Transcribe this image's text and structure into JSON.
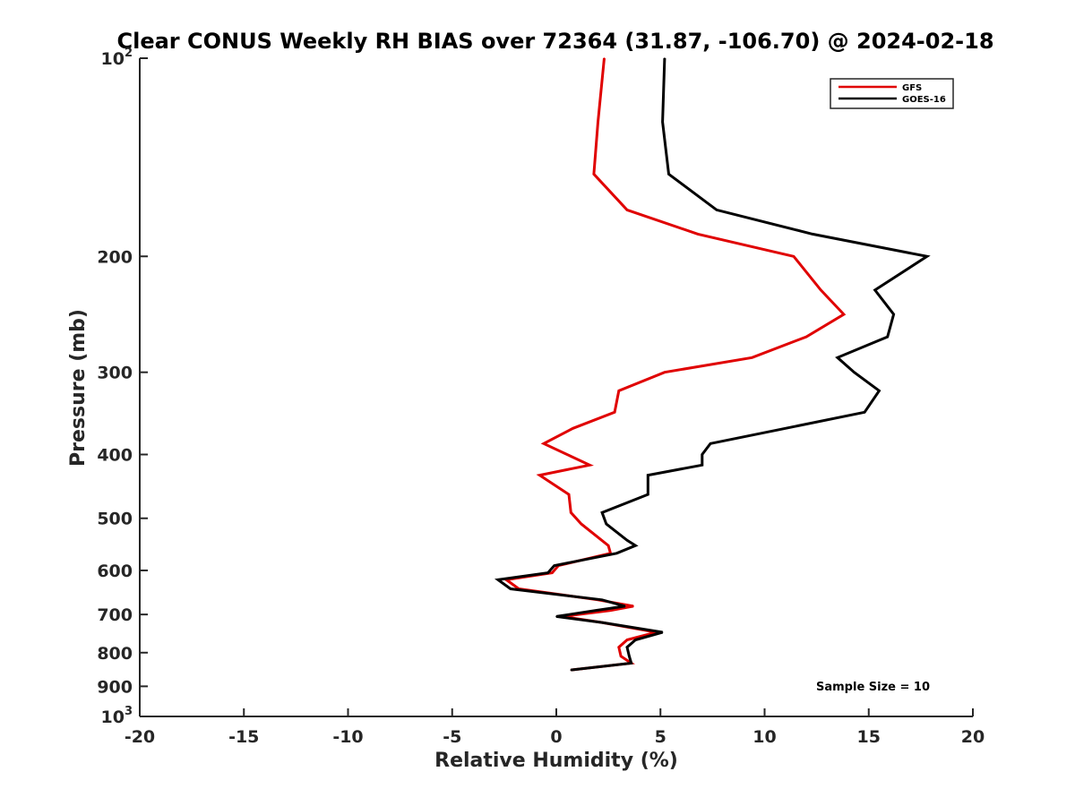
{
  "chart_data": {
    "type": "line",
    "title": "Clear CONUS Weekly RH BIAS over 72364 (31.87, -106.70) @ 2024-02-18",
    "xlabel": "Relative Humidity (%)",
    "ylabel": "Pressure (mb)",
    "xlim": [
      -20,
      20
    ],
    "ylim": [
      100,
      1000
    ],
    "y_scale": "log",
    "y_reversed": true,
    "grid": false,
    "legend_position": "top-right",
    "annotation": "Sample Size = 10",
    "x_ticks": [
      -20,
      -15,
      -10,
      -5,
      0,
      5,
      10,
      15,
      20
    ],
    "x_tick_labels": [
      "-20",
      "-15",
      "-10",
      "-5",
      "0",
      "5",
      "10",
      "15",
      "20"
    ],
    "y_ticks": [
      {
        "value": 100,
        "base": "10",
        "exp": "2"
      },
      {
        "value": 200,
        "label": "200"
      },
      {
        "value": 300,
        "label": "300"
      },
      {
        "value": 400,
        "label": "400"
      },
      {
        "value": 500,
        "label": "500"
      },
      {
        "value": 600,
        "label": "600"
      },
      {
        "value": 700,
        "label": "700"
      },
      {
        "value": 800,
        "label": "800"
      },
      {
        "value": 900,
        "label": "900"
      },
      {
        "value": 1000,
        "base": "10",
        "exp": "3"
      }
    ],
    "series": [
      {
        "name": "GFS",
        "color": "#e00000",
        "points": [
          {
            "x": 2.3,
            "y": 100
          },
          {
            "x": 2.0,
            "y": 125
          },
          {
            "x": 1.8,
            "y": 150
          },
          {
            "x": 3.4,
            "y": 170
          },
          {
            "x": 6.8,
            "y": 185
          },
          {
            "x": 11.4,
            "y": 200
          },
          {
            "x": 12.7,
            "y": 225
          },
          {
            "x": 13.8,
            "y": 245
          },
          {
            "x": 12.0,
            "y": 265
          },
          {
            "x": 9.4,
            "y": 285
          },
          {
            "x": 5.2,
            "y": 300
          },
          {
            "x": 3.0,
            "y": 320
          },
          {
            "x": 2.8,
            "y": 345
          },
          {
            "x": 0.8,
            "y": 365
          },
          {
            "x": -0.6,
            "y": 385
          },
          {
            "x": 1.6,
            "y": 415
          },
          {
            "x": -0.8,
            "y": 430
          },
          {
            "x": 0.6,
            "y": 460
          },
          {
            "x": 0.7,
            "y": 490
          },
          {
            "x": 1.2,
            "y": 510
          },
          {
            "x": 2.5,
            "y": 550
          },
          {
            "x": 2.6,
            "y": 565
          },
          {
            "x": 0.1,
            "y": 590
          },
          {
            "x": -0.2,
            "y": 605
          },
          {
            "x": -2.4,
            "y": 620
          },
          {
            "x": -1.8,
            "y": 640
          },
          {
            "x": 2.0,
            "y": 665
          },
          {
            "x": 3.7,
            "y": 680
          },
          {
            "x": 2.6,
            "y": 690
          },
          {
            "x": 0.3,
            "y": 705
          },
          {
            "x": 2.2,
            "y": 720
          },
          {
            "x": 4.8,
            "y": 745
          },
          {
            "x": 3.4,
            "y": 765
          },
          {
            "x": 3.0,
            "y": 785
          },
          {
            "x": 3.1,
            "y": 810
          },
          {
            "x": 3.6,
            "y": 830
          },
          {
            "x": 0.7,
            "y": 850
          }
        ]
      },
      {
        "name": "GOES-16",
        "color": "#000000",
        "points": [
          {
            "x": 5.2,
            "y": 100
          },
          {
            "x": 5.1,
            "y": 125
          },
          {
            "x": 5.4,
            "y": 150
          },
          {
            "x": 7.7,
            "y": 170
          },
          {
            "x": 12.3,
            "y": 185
          },
          {
            "x": 17.8,
            "y": 200
          },
          {
            "x": 15.3,
            "y": 225
          },
          {
            "x": 16.2,
            "y": 245
          },
          {
            "x": 15.9,
            "y": 265
          },
          {
            "x": 13.5,
            "y": 285
          },
          {
            "x": 14.3,
            "y": 300
          },
          {
            "x": 15.5,
            "y": 320
          },
          {
            "x": 14.8,
            "y": 345
          },
          {
            "x": 11.0,
            "y": 365
          },
          {
            "x": 7.4,
            "y": 385
          },
          {
            "x": 7.0,
            "y": 400
          },
          {
            "x": 7.0,
            "y": 415
          },
          {
            "x": 4.4,
            "y": 430
          },
          {
            "x": 4.4,
            "y": 460
          },
          {
            "x": 2.2,
            "y": 490
          },
          {
            "x": 2.4,
            "y": 510
          },
          {
            "x": 3.4,
            "y": 540
          },
          {
            "x": 3.8,
            "y": 550
          },
          {
            "x": 2.9,
            "y": 565
          },
          {
            "x": -0.1,
            "y": 590
          },
          {
            "x": -0.4,
            "y": 605
          },
          {
            "x": -2.8,
            "y": 620
          },
          {
            "x": -2.2,
            "y": 640
          },
          {
            "x": 2.2,
            "y": 665
          },
          {
            "x": 3.3,
            "y": 680
          },
          {
            "x": 1.9,
            "y": 690
          },
          {
            "x": 0.0,
            "y": 705
          },
          {
            "x": 2.2,
            "y": 720
          },
          {
            "x": 5.1,
            "y": 745
          },
          {
            "x": 3.8,
            "y": 765
          },
          {
            "x": 3.4,
            "y": 785
          },
          {
            "x": 3.5,
            "y": 810
          },
          {
            "x": 3.6,
            "y": 830
          },
          {
            "x": 0.7,
            "y": 850
          }
        ]
      }
    ]
  }
}
